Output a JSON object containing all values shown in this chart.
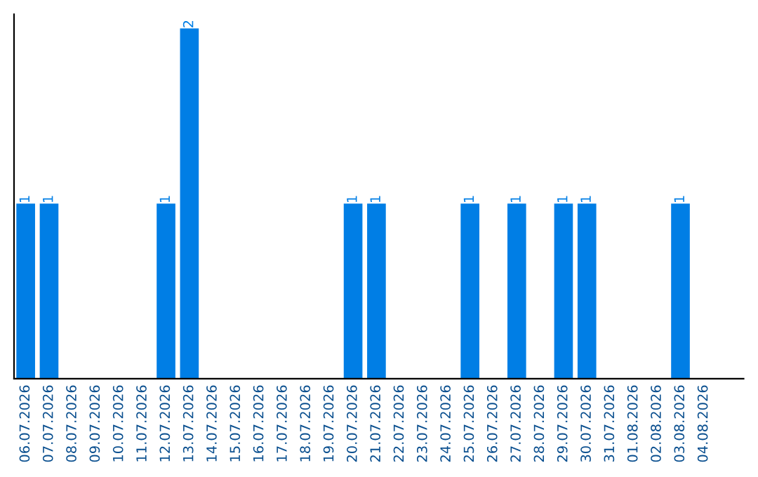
{
  "chart_data": {
    "type": "bar",
    "categories": [
      "06.07.2026",
      "07.07.2026",
      "08.07.2026",
      "09.07.2026",
      "10.07.2026",
      "11.07.2026",
      "12.07.2026",
      "13.07.2026",
      "14.07.2026",
      "15.07.2026",
      "16.07.2026",
      "17.07.2026",
      "18.07.2026",
      "19.07.2026",
      "20.07.2026",
      "21.07.2026",
      "22.07.2026",
      "23.07.2026",
      "24.07.2026",
      "25.07.2026",
      "26.07.2026",
      "27.07.2026",
      "28.07.2026",
      "29.07.2026",
      "30.07.2026",
      "31.07.2026",
      "01.08.2026",
      "02.08.2026",
      "03.08.2026",
      "04.08.2026"
    ],
    "values": [
      1,
      1,
      0,
      0,
      0,
      0,
      1,
      2,
      0,
      0,
      0,
      0,
      0,
      0,
      1,
      1,
      0,
      0,
      0,
      1,
      0,
      1,
      0,
      1,
      1,
      0,
      0,
      0,
      1,
      0
    ],
    "value_labels": [
      "1",
      "1",
      null,
      null,
      null,
      null,
      "1",
      "2",
      null,
      null,
      null,
      null,
      null,
      null,
      "1",
      "1",
      null,
      null,
      null,
      "1",
      null,
      "1",
      null,
      "1",
      "1",
      null,
      null,
      null,
      "1",
      null
    ],
    "color": "#007ee5",
    "grid": false,
    "legend": false
  }
}
